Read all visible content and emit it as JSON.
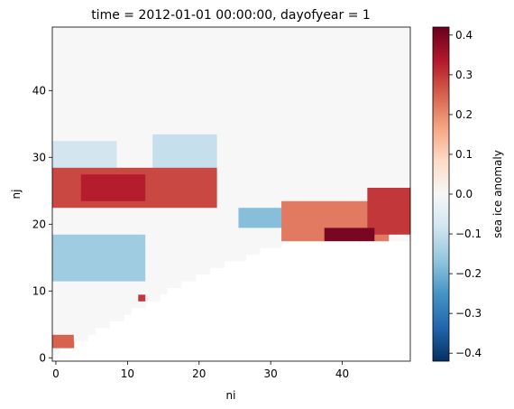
{
  "chart_data": {
    "type": "heatmap",
    "title": "time = 2012-01-01 00:00:00, dayofyear = 1",
    "xlabel": "ni",
    "ylabel": "nj",
    "colorbar_label": "sea ice anomaly",
    "colormap": "RdBu_r",
    "vmin": -0.42,
    "vmax": 0.42,
    "xlim": [
      -0.5,
      49.5
    ],
    "ylim": [
      -0.5,
      49.5
    ],
    "xticks": [
      0,
      10,
      20,
      30,
      40
    ],
    "yticks": [
      0,
      10,
      20,
      30,
      40
    ],
    "colorbar_ticks": [
      -0.4,
      -0.3,
      -0.2,
      -0.1,
      0.0,
      0.1,
      0.2,
      0.3,
      0.4
    ],
    "colorbar_tick_labels": [
      "−0.4",
      "−0.3",
      "−0.2",
      "−0.1",
      "0.0",
      "0.1",
      "0.2",
      "0.3",
      "0.4"
    ],
    "grid": "50x50 cells, ni 0-49, nj 0-49; cells below the ice-edge boundary are NaN (white)",
    "features": [
      {
        "region": "positive band",
        "ni": [
          0,
          22
        ],
        "nj": [
          23,
          28
        ],
        "value": 0.28
      },
      {
        "region": "positive core",
        "ni": [
          4,
          12
        ],
        "nj": [
          24,
          27
        ],
        "value": 0.33
      },
      {
        "region": "strong positive",
        "ni": [
          38,
          44
        ],
        "nj": [
          18,
          19
        ],
        "value": 0.4
      },
      {
        "region": "positive",
        "ni": [
          32,
          46
        ],
        "nj": [
          18,
          23
        ],
        "value": 0.22
      },
      {
        "region": "positive",
        "ni": [
          44,
          49
        ],
        "nj": [
          19,
          25
        ],
        "value": 0.3
      },
      {
        "region": "negative",
        "ni": [
          0,
          12
        ],
        "nj": [
          12,
          18
        ],
        "value": -0.15
      },
      {
        "region": "negative",
        "ni": [
          26,
          31
        ],
        "nj": [
          20,
          22
        ],
        "value": -0.18
      },
      {
        "region": "negative",
        "ni": [
          14,
          22
        ],
        "nj": [
          29,
          33
        ],
        "value": -0.1
      },
      {
        "region": "negative",
        "ni": [
          0,
          8
        ],
        "nj": [
          29,
          32
        ],
        "value": -0.08
      },
      {
        "region": "positive",
        "ni": [
          0,
          2
        ],
        "nj": [
          2,
          3
        ],
        "value": 0.25
      },
      {
        "region": "positive",
        "ni": [
          12,
          12
        ],
        "nj": [
          9,
          9
        ],
        "value": 0.3
      },
      {
        "region": "near zero",
        "ni": [
          0,
          49
        ],
        "nj": [
          35,
          49
        ],
        "value": 0.0
      }
    ]
  }
}
